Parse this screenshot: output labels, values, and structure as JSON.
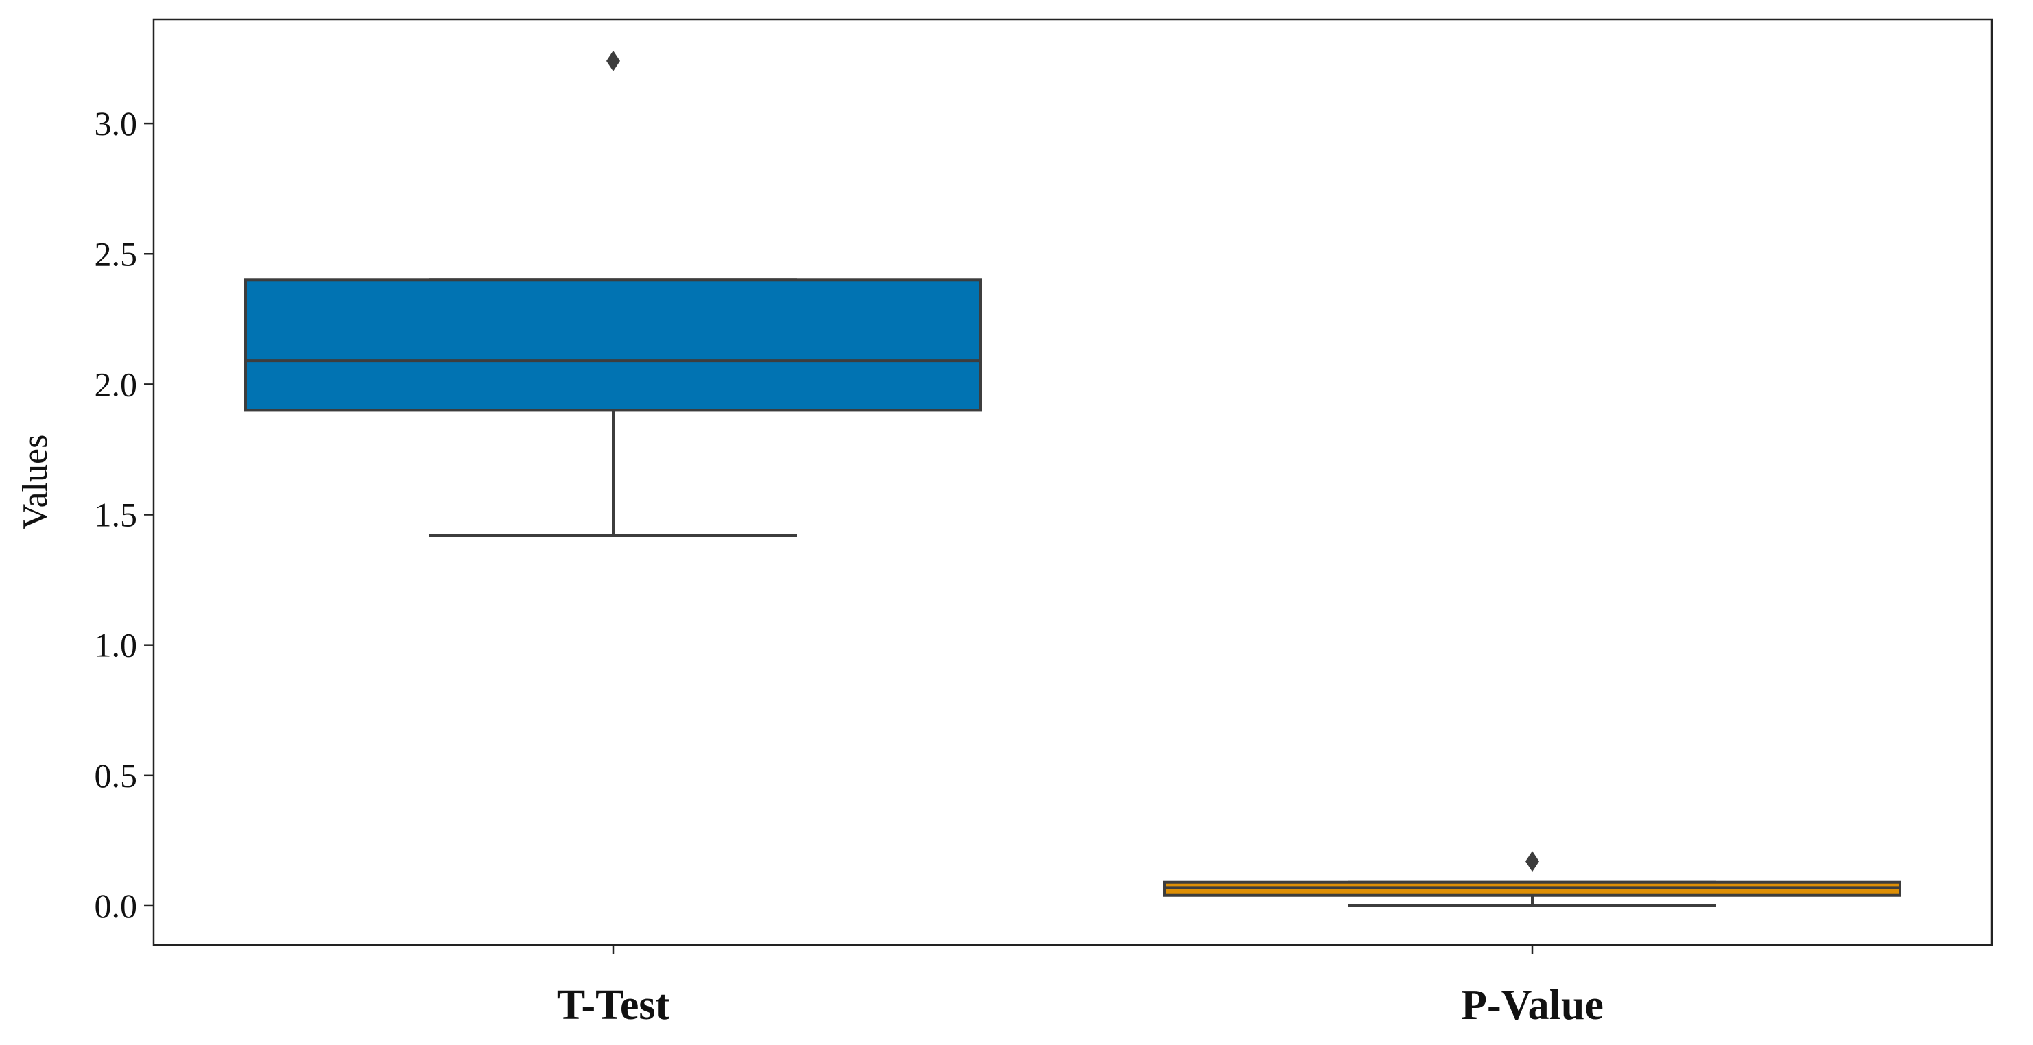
{
  "chart_data": {
    "type": "box",
    "title": "",
    "xlabel": "",
    "ylabel": "Values",
    "ylim": [
      -0.15,
      3.4
    ],
    "yticks": [
      0.0,
      0.5,
      1.0,
      1.5,
      2.0,
      2.5,
      3.0
    ],
    "ytick_labels": [
      "0.0",
      "0.5",
      "1.0",
      "1.5",
      "2.0",
      "2.5",
      "3.0"
    ],
    "grid": false,
    "legend": "none",
    "categories": [
      "T-Test",
      "P-Value"
    ],
    "boxes": [
      {
        "category": "T-Test",
        "whisker_low": 1.42,
        "q1": 1.9,
        "median": 2.09,
        "q3": 2.4,
        "whisker_high": 2.4,
        "outliers": [
          3.24
        ],
        "color": "#0173b2"
      },
      {
        "category": "P-Value",
        "whisker_low": 0.0,
        "q1": 0.04,
        "median": 0.07,
        "q3": 0.09,
        "whisker_high": 0.09,
        "outliers": [
          0.17
        ],
        "color": "#de8f05"
      }
    ],
    "line_color": "#3d3d3d"
  }
}
